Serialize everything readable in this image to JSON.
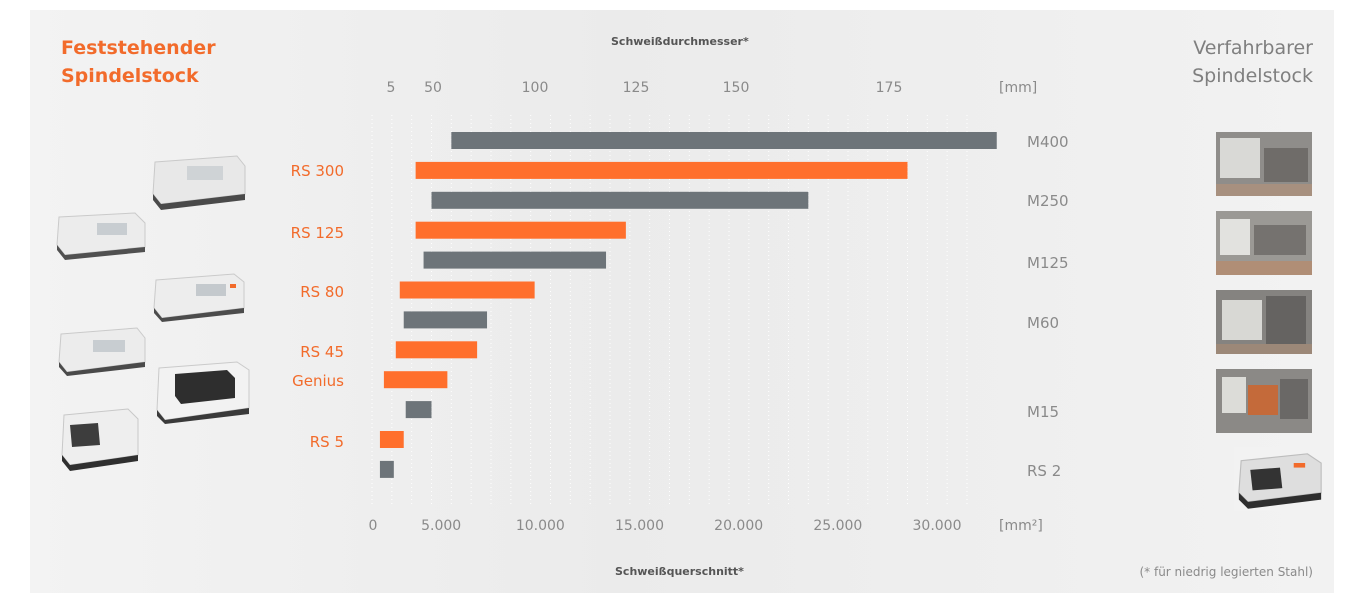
{
  "titles": {
    "left_line1": "Feststehender",
    "left_line2": "Spindelstock",
    "right_line1": "Verfahrbarer",
    "right_line2": "Spindelstock"
  },
  "footnote": "(* für niedrig legierten Stahl)",
  "chart_data": {
    "type": "bar",
    "orientation": "horizontal",
    "x_top": {
      "title": "Schweißdurchmesser*",
      "ticks": [
        "5",
        "50",
        "100",
        "125",
        "150",
        "175"
      ],
      "unit": "[mm]"
    },
    "x_bottom": {
      "title": "Schweißquerschnitt*",
      "ticks": [
        "0",
        "5.000",
        "10.000",
        "15.000",
        "20.000",
        "25.000",
        "30.000"
      ],
      "tick_values": [
        0,
        5000,
        10000,
        15000,
        20000,
        25000,
        30000
      ],
      "unit": "[mm²]",
      "xlim": [
        0,
        32000
      ]
    },
    "colors": {
      "fixed": "#ff6f2c",
      "movable": "#6d7479"
    },
    "bars": [
      {
        "label": "M400",
        "group": "movable",
        "start": 4000,
        "end": 31500
      },
      {
        "label": "RS 300",
        "group": "fixed",
        "start": 2200,
        "end": 27000
      },
      {
        "label": "M250",
        "group": "movable",
        "start": 3000,
        "end": 22000
      },
      {
        "label": "RS 125",
        "group": "fixed",
        "start": 2200,
        "end": 12800
      },
      {
        "label": "M125",
        "group": "movable",
        "start": 2600,
        "end": 11800
      },
      {
        "label": "RS 80",
        "group": "fixed",
        "start": 1400,
        "end": 8200
      },
      {
        "label": "",
        "group": "movable",
        "start": 1600,
        "end": 5800
      },
      {
        "label": "RS 45",
        "group": "fixed",
        "start": 1200,
        "end": 5300
      },
      {
        "label": "Genius",
        "group": "fixed",
        "start": 600,
        "end": 3800
      },
      {
        "label": "M15",
        "group": "movable",
        "start": 1700,
        "end": 3000
      },
      {
        "label": "RS 5",
        "group": "fixed",
        "start": 400,
        "end": 1600
      },
      {
        "label": "RS 2",
        "group": "movable",
        "start": 400,
        "end": 1100
      }
    ]
  },
  "left_labels": [
    "RS 300",
    "RS 125",
    "RS 80",
    "RS 45",
    "Genius",
    "RS 5"
  ],
  "right_labels": [
    "M400",
    "M250",
    "M125",
    "M60",
    "M15",
    "RS 2"
  ]
}
